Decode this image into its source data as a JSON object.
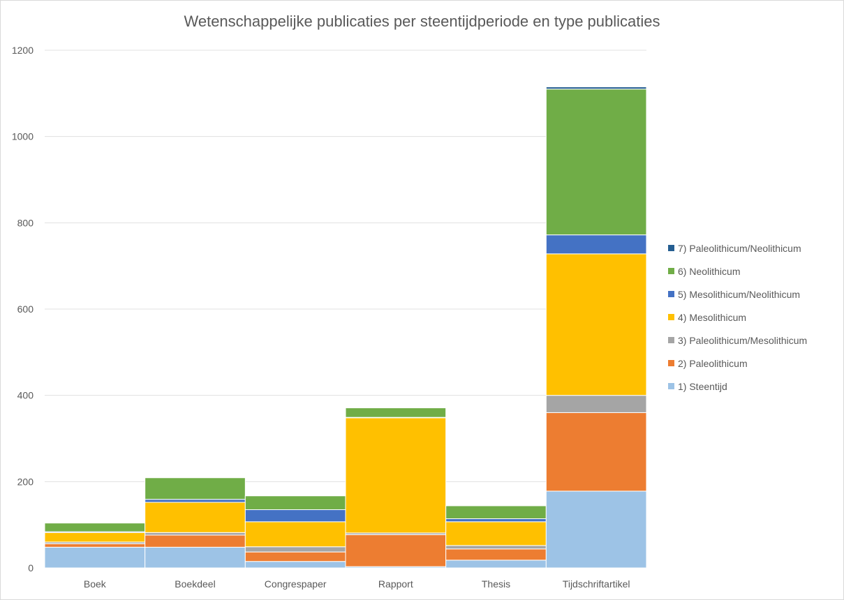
{
  "chart_data": {
    "type": "bar",
    "stacked": true,
    "title": "Wetenschappelijke publicaties per steentijdperiode en type publicaties",
    "xlabel": "",
    "ylabel": "",
    "ylim": [
      0,
      1200
    ],
    "yticks": [
      0,
      200,
      400,
      600,
      800,
      1000,
      1200
    ],
    "grid": true,
    "legend_position": "right",
    "categories": [
      "Boek",
      "Boekdeel",
      "Congrespaper",
      "Rapport",
      "Thesis",
      "Tijdschriftartikel"
    ],
    "series": [
      {
        "name": "1) Steentijd",
        "color": "#9dc3e6",
        "values": [
          48,
          48,
          15,
          3,
          18,
          178
        ]
      },
      {
        "name": "2) Paleolithicum",
        "color": "#ed7d31",
        "values": [
          8,
          28,
          22,
          74,
          26,
          182
        ]
      },
      {
        "name": "3) Paleolithicum/Mesolithicum",
        "color": "#a5a5a5",
        "values": [
          4,
          6,
          12,
          4,
          8,
          40
        ]
      },
      {
        "name": "4) Mesolithicum",
        "color": "#ffc000",
        "values": [
          22,
          70,
          58,
          267,
          55,
          328
        ]
      },
      {
        "name": "5) Mesolithicum/Neolithicum",
        "color": "#4472c4",
        "values": [
          2,
          7,
          28,
          1,
          7,
          44
        ]
      },
      {
        "name": "6) Neolithicum",
        "color": "#70ad47",
        "values": [
          20,
          50,
          32,
          22,
          30,
          338
        ]
      },
      {
        "name": "7) Paleolithicum/Neolithicum",
        "color": "#255e91",
        "values": [
          0,
          0,
          0,
          0,
          0,
          5
        ]
      }
    ]
  }
}
